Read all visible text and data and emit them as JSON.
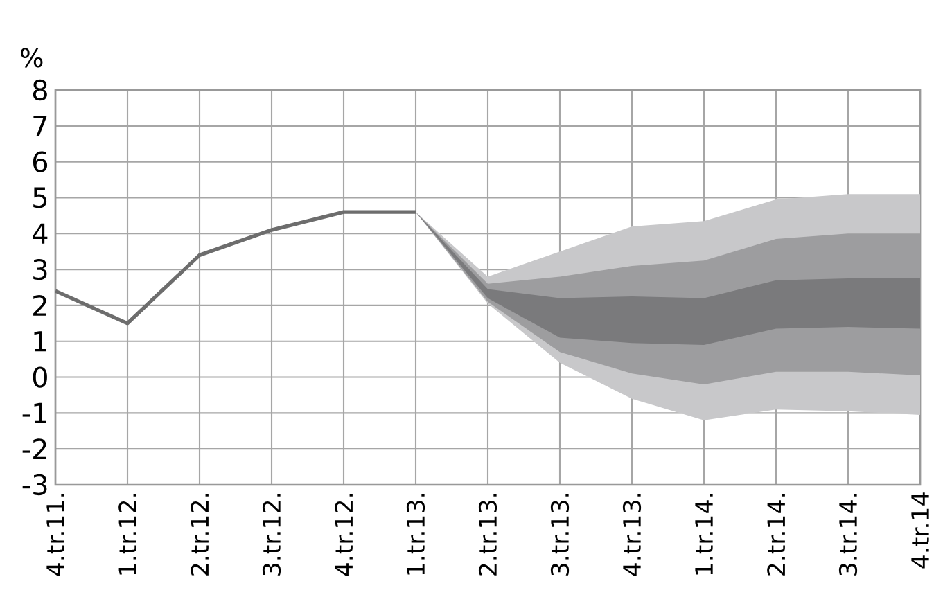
{
  "chart_data": {
    "type": "line",
    "ylabel": "%",
    "categories": [
      "4.tr.11.",
      "1.tr.12.",
      "2.tr.12.",
      "3.tr.12.",
      "4.tr.12.",
      "1.tr.13.",
      "2.tr.13.",
      "3.tr.13.",
      "4.tr.13.",
      "1.tr.14.",
      "2.tr.14.",
      "3.tr.14.",
      "4.tr.14"
    ],
    "ylim": [
      -3,
      8
    ],
    "yticks": [
      -3,
      -2,
      -1,
      0,
      1,
      2,
      3,
      4,
      5,
      6,
      7,
      8
    ],
    "grid": true,
    "marker": "none",
    "line_style": "solid",
    "series": [
      {
        "type": "area",
        "color": "#c8c8ca",
        "values": [
          null,
          null,
          null,
          null,
          null,
          null,
          null,
          null,
          null,
          null,
          null,
          null,
          null
        ],
        "lower": [
          null,
          null,
          null,
          null,
          null,
          4.6,
          2.05,
          0.4,
          -0.6,
          -1.2,
          -0.9,
          -0.95,
          -1.05
        ],
        "upper": [
          null,
          null,
          null,
          null,
          null,
          4.6,
          2.8,
          3.5,
          4.2,
          4.35,
          4.95,
          5.1,
          5.1
        ]
      },
      {
        "type": "area",
        "color": "#9d9d9f",
        "values": [
          null,
          null,
          null,
          null,
          null,
          null,
          null,
          null,
          null,
          null,
          null,
          null,
          null
        ],
        "lower": [
          null,
          null,
          null,
          null,
          null,
          4.6,
          2.1,
          0.7,
          0.1,
          -0.2,
          0.15,
          0.15,
          0.05
        ],
        "upper": [
          null,
          null,
          null,
          null,
          null,
          4.6,
          2.6,
          2.8,
          3.1,
          3.25,
          3.85,
          4.0,
          4.0
        ]
      },
      {
        "type": "area",
        "color": "#7a7a7c",
        "values": [
          null,
          null,
          null,
          null,
          null,
          null,
          null,
          null,
          null,
          null,
          null,
          null,
          null
        ],
        "lower": [
          null,
          null,
          null,
          null,
          null,
          4.6,
          2.2,
          1.1,
          0.95,
          0.9,
          1.35,
          1.4,
          1.35
        ],
        "upper": [
          null,
          null,
          null,
          null,
          null,
          4.6,
          2.45,
          2.2,
          2.25,
          2.2,
          2.7,
          2.75,
          2.75
        ]
      },
      {
        "color": "#6d6d6d",
        "values": [
          2.4,
          1.5,
          3.4,
          4.1,
          4.6,
          4.6,
          null,
          null,
          null,
          null,
          null,
          null,
          null
        ]
      }
    ]
  }
}
